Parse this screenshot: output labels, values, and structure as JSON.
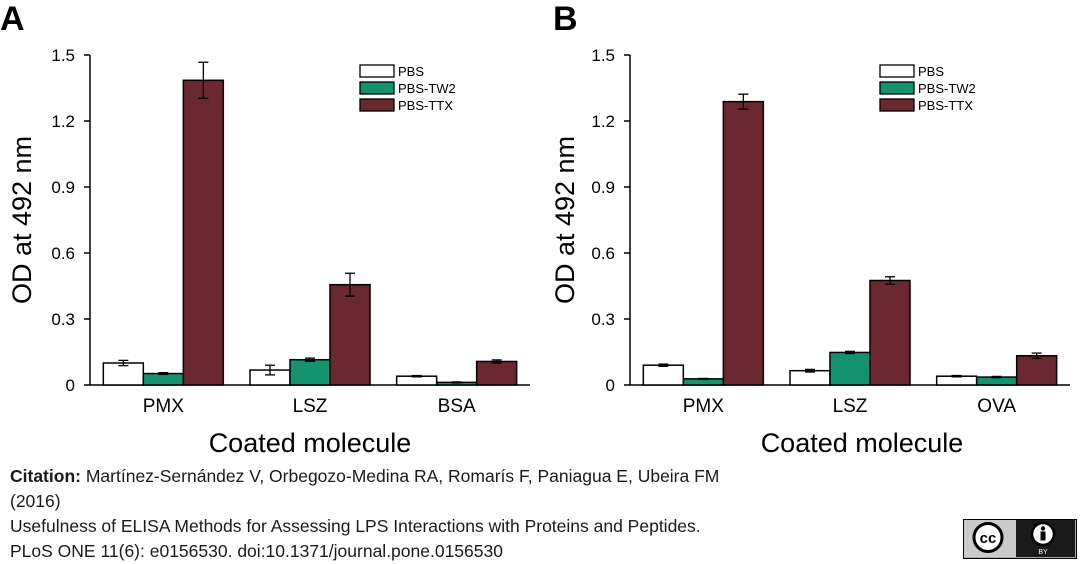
{
  "chart_data": [
    {
      "panel_label": "A",
      "type": "bar",
      "categories": [
        "PMX",
        "LSZ",
        "BSA"
      ],
      "series": [
        {
          "name": "PBS",
          "color": "#ffffff",
          "values": [
            0.1,
            0.068,
            0.04
          ],
          "errors": [
            0.012,
            0.022,
            0.003
          ]
        },
        {
          "name": "PBS-TW2",
          "color": "#14936f",
          "values": [
            0.052,
            0.115,
            0.012
          ],
          "errors": [
            0.004,
            0.007,
            0.002
          ]
        },
        {
          "name": "PBS-TTX",
          "color": "#6b2830",
          "values": [
            1.385,
            0.456,
            0.107
          ],
          "errors": [
            0.082,
            0.052,
            0.007
          ]
        }
      ],
      "ylim": [
        0,
        1.5
      ],
      "yticks": [
        "0",
        "0.3",
        "0.6",
        "0.9",
        "1.2",
        "1.5"
      ],
      "ylabel": "OD at 492 nm",
      "xlabel": "Coated molecule",
      "legend": "top-right"
    },
    {
      "panel_label": "B",
      "type": "bar",
      "categories": [
        "PMX",
        "LSZ",
        "OVA"
      ],
      "series": [
        {
          "name": "PBS",
          "color": "#ffffff",
          "values": [
            0.09,
            0.065,
            0.04
          ],
          "errors": [
            0.005,
            0.006,
            0.003
          ]
        },
        {
          "name": "PBS-TW2",
          "color": "#14936f",
          "values": [
            0.028,
            0.148,
            0.036
          ],
          "errors": [
            0.002,
            0.005,
            0.003
          ]
        },
        {
          "name": "PBS-TTX",
          "color": "#6b2830",
          "values": [
            1.288,
            0.475,
            0.133
          ],
          "errors": [
            0.034,
            0.017,
            0.012
          ]
        }
      ],
      "ylim": [
        0,
        1.5
      ],
      "yticks": [
        "0",
        "0.3",
        "0.6",
        "0.9",
        "1.2",
        "1.5"
      ],
      "ylabel": "OD at 492 nm",
      "xlabel": "Coated molecule",
      "legend": "top-right"
    }
  ],
  "citation": {
    "label": "Citation:",
    "authors": "Martínez-Sernández V, Orbegozo-Medina RA, Romarís F, Paniagua E, Ubeira FM",
    "year": "(2016)",
    "title": "Usefulness of ELISA Methods for Assessing LPS Interactions with Proteins and Peptides.",
    "journal": "PLoS ONE 11(6): e0156530. doi:10.1371/journal.pone.0156530"
  },
  "license_badge": {
    "cc_text": "cc",
    "by_text": "BY",
    "icons": [
      "creative-commons-icon",
      "attribution-person-icon"
    ]
  }
}
